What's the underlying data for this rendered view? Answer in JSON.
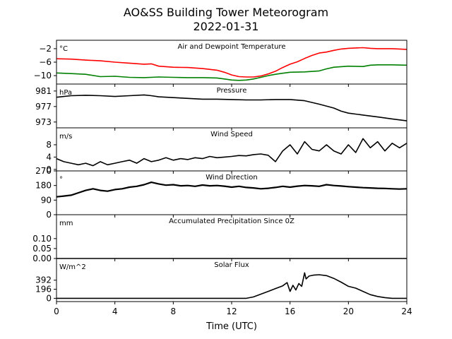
{
  "figure": {
    "title_line1": "AO&SS Building Tower Meteorogram",
    "title_line2": "2022-01-31",
    "xlabel": "Time (UTC)"
  },
  "chart_data": [
    {
      "type": "line",
      "title": "Air and Dewpoint Temperature",
      "unit": "°C",
      "ylim": [
        -12.5,
        0.5
      ],
      "yticks": [
        -2,
        -6,
        -10
      ],
      "ytick_labels": [
        "−2",
        "−6",
        "−10"
      ],
      "xlim": [
        0,
        24
      ],
      "xticks": [
        0,
        4,
        8,
        12,
        16,
        20,
        24
      ],
      "series": [
        {
          "color": "#ff0000",
          "x": [
            0,
            1,
            2,
            2.5,
            3,
            4,
            5,
            6,
            6.5,
            7,
            8,
            9,
            10,
            11,
            11.5,
            12,
            12.5,
            13,
            13.5,
            14,
            14.5,
            15,
            15.5,
            16,
            16.5,
            17,
            17.5,
            18,
            18.5,
            19,
            19.5,
            20,
            21,
            21.5,
            22,
            23,
            24
          ],
          "y": [
            -5.0,
            -5.1,
            -5.4,
            -5.5,
            -5.6,
            -6.0,
            -6.3,
            -6.6,
            -6.5,
            -7.2,
            -7.5,
            -7.6,
            -7.9,
            -8.4,
            -9.0,
            -9.8,
            -10.3,
            -10.4,
            -10.4,
            -10.1,
            -9.5,
            -8.7,
            -7.6,
            -6.6,
            -5.9,
            -4.9,
            -4.0,
            -3.3,
            -3.0,
            -2.5,
            -2.1,
            -1.9,
            -1.7,
            -1.9,
            -2.0,
            -2.0,
            -2.2
          ]
        },
        {
          "color": "#008000",
          "x": [
            0,
            1,
            2,
            3,
            4,
            5,
            6,
            7,
            8,
            9,
            10,
            11,
            11.5,
            12,
            12.5,
            13,
            13.5,
            14,
            14.5,
            15,
            15.5,
            16,
            17,
            18,
            18.5,
            19,
            20,
            21,
            21.5,
            22,
            23,
            24
          ],
          "y": [
            -9.2,
            -9.4,
            -9.6,
            -10.3,
            -10.2,
            -10.5,
            -10.6,
            -10.4,
            -10.5,
            -10.6,
            -10.6,
            -10.7,
            -11.0,
            -11.3,
            -11.4,
            -11.3,
            -11.0,
            -10.5,
            -10.0,
            -9.6,
            -9.3,
            -9.0,
            -8.9,
            -8.6,
            -8.0,
            -7.5,
            -7.2,
            -7.3,
            -6.9,
            -6.8,
            -6.8,
            -6.9
          ]
        }
      ]
    },
    {
      "type": "line",
      "title": "Pressure",
      "unit": "hPa",
      "ylim": [
        971.5,
        982.8
      ],
      "yticks": [
        981,
        977,
        973
      ],
      "ytick_labels": [
        "981",
        "977",
        "973"
      ],
      "series": [
        {
          "color": "#000000",
          "x": [
            0,
            1,
            2,
            3,
            4,
            5,
            6,
            6.5,
            7,
            8,
            9,
            10,
            11,
            12,
            13,
            14,
            15,
            16,
            17,
            18,
            19,
            19.5,
            20,
            21,
            22,
            23,
            24
          ],
          "y": [
            979.4,
            979.8,
            979.9,
            979.8,
            979.6,
            979.8,
            980.0,
            979.8,
            979.5,
            979.3,
            979.1,
            978.9,
            978.9,
            978.8,
            978.7,
            978.7,
            978.8,
            978.8,
            978.5,
            977.6,
            976.6,
            975.8,
            975.3,
            974.8,
            974.3,
            973.8,
            973.3
          ]
        }
      ]
    },
    {
      "type": "line",
      "title": "Wind Speed",
      "unit": "m/s",
      "ylim": [
        -0.5,
        13.5
      ],
      "yticks": [
        8,
        4,
        0
      ],
      "ytick_labels": [
        "8",
        "4",
        "0"
      ],
      "series": [
        {
          "color": "#000000",
          "x": [
            0,
            0.5,
            1,
            1.5,
            2,
            2.5,
            3,
            3.5,
            4,
            4.5,
            5,
            5.5,
            6,
            6.5,
            7,
            7.5,
            8,
            8.5,
            9,
            9.5,
            10,
            10.5,
            11,
            11.5,
            12,
            12.5,
            13,
            13.5,
            14,
            14.5,
            15,
            15.5,
            16,
            16.5,
            17,
            17.5,
            18,
            18.5,
            19,
            19.5,
            20,
            20.5,
            21,
            21.5,
            22,
            22.5,
            23,
            23.5,
            24
          ],
          "y": [
            3.5,
            2.5,
            2.0,
            1.5,
            2.0,
            1.2,
            2.5,
            1.5,
            2.0,
            2.5,
            3.0,
            2.0,
            3.5,
            2.5,
            3.0,
            3.8,
            3.0,
            3.5,
            3.2,
            3.8,
            3.5,
            4.2,
            3.8,
            4.0,
            4.2,
            4.5,
            4.4,
            4.8,
            5.0,
            4.6,
            2.5,
            6.0,
            8.0,
            5.0,
            9.0,
            6.5,
            6.0,
            8.0,
            6.0,
            5.0,
            8.0,
            5.5,
            10.0,
            7.0,
            9.0,
            6.0,
            8.5,
            7.0,
            8.5
          ]
        }
      ]
    },
    {
      "type": "line",
      "title": "Wind Direction",
      "unit": "°",
      "ylim": [
        0,
        270
      ],
      "yticks": [
        270,
        180,
        90,
        0
      ],
      "ytick_labels": [
        "270",
        "180",
        "90",
        "0"
      ],
      "series": [
        {
          "color": "#000000",
          "x": [
            0,
            0.5,
            1,
            1.5,
            2,
            2.5,
            3,
            3.5,
            4,
            4.5,
            5,
            5.5,
            6,
            6.5,
            7,
            7.5,
            8,
            8.5,
            9,
            9.5,
            10,
            10.5,
            11,
            11.5,
            12,
            12.5,
            13,
            13.5,
            14,
            14.5,
            15,
            15.5,
            16,
            16.5,
            17,
            17.5,
            18,
            18.5,
            19,
            19.5,
            20,
            20.5,
            21,
            21.5,
            22,
            22.5,
            23,
            23.5,
            24
          ],
          "y": [
            110,
            115,
            120,
            135,
            150,
            160,
            150,
            145,
            155,
            160,
            170,
            175,
            185,
            200,
            190,
            182,
            185,
            178,
            180,
            175,
            183,
            178,
            180,
            176,
            170,
            175,
            168,
            165,
            160,
            163,
            168,
            175,
            170,
            176,
            180,
            178,
            175,
            185,
            180,
            177,
            173,
            170,
            167,
            165,
            163,
            162,
            160,
            158,
            160
          ]
        }
      ]
    },
    {
      "type": "line",
      "title": "Accumulated Precipitation Since 0Z",
      "unit": "mm",
      "ylim": [
        0,
        0.22
      ],
      "yticks": [
        0.1,
        0.05,
        0.0
      ],
      "ytick_labels": [
        "0.10",
        "0.05",
        "0.00"
      ],
      "series": [
        {
          "color": "#000000",
          "x": [
            0,
            24
          ],
          "y": [
            0,
            0
          ]
        }
      ]
    },
    {
      "type": "line",
      "title": "Solar Flux",
      "unit": "W/m^2",
      "ylim": [
        -70,
        860
      ],
      "yticks": [
        392,
        196,
        0
      ],
      "ytick_labels": [
        "392",
        "196",
        "0"
      ],
      "series": [
        {
          "color": "#000000",
          "x": [
            0,
            12,
            13,
            13.5,
            14,
            14.5,
            15,
            15.5,
            15.8,
            16,
            16.2,
            16.4,
            16.6,
            16.8,
            17,
            17.1,
            17.3,
            17.6,
            18,
            18.5,
            19,
            19.5,
            20,
            20.5,
            21,
            21.5,
            22,
            22.5,
            23,
            23.5,
            24
          ],
          "y": [
            0,
            0,
            0,
            30,
            90,
            150,
            210,
            270,
            340,
            150,
            280,
            180,
            320,
            260,
            550,
            420,
            480,
            500,
            510,
            490,
            430,
            350,
            260,
            220,
            150,
            80,
            40,
            15,
            0,
            0,
            0
          ]
        }
      ]
    }
  ]
}
